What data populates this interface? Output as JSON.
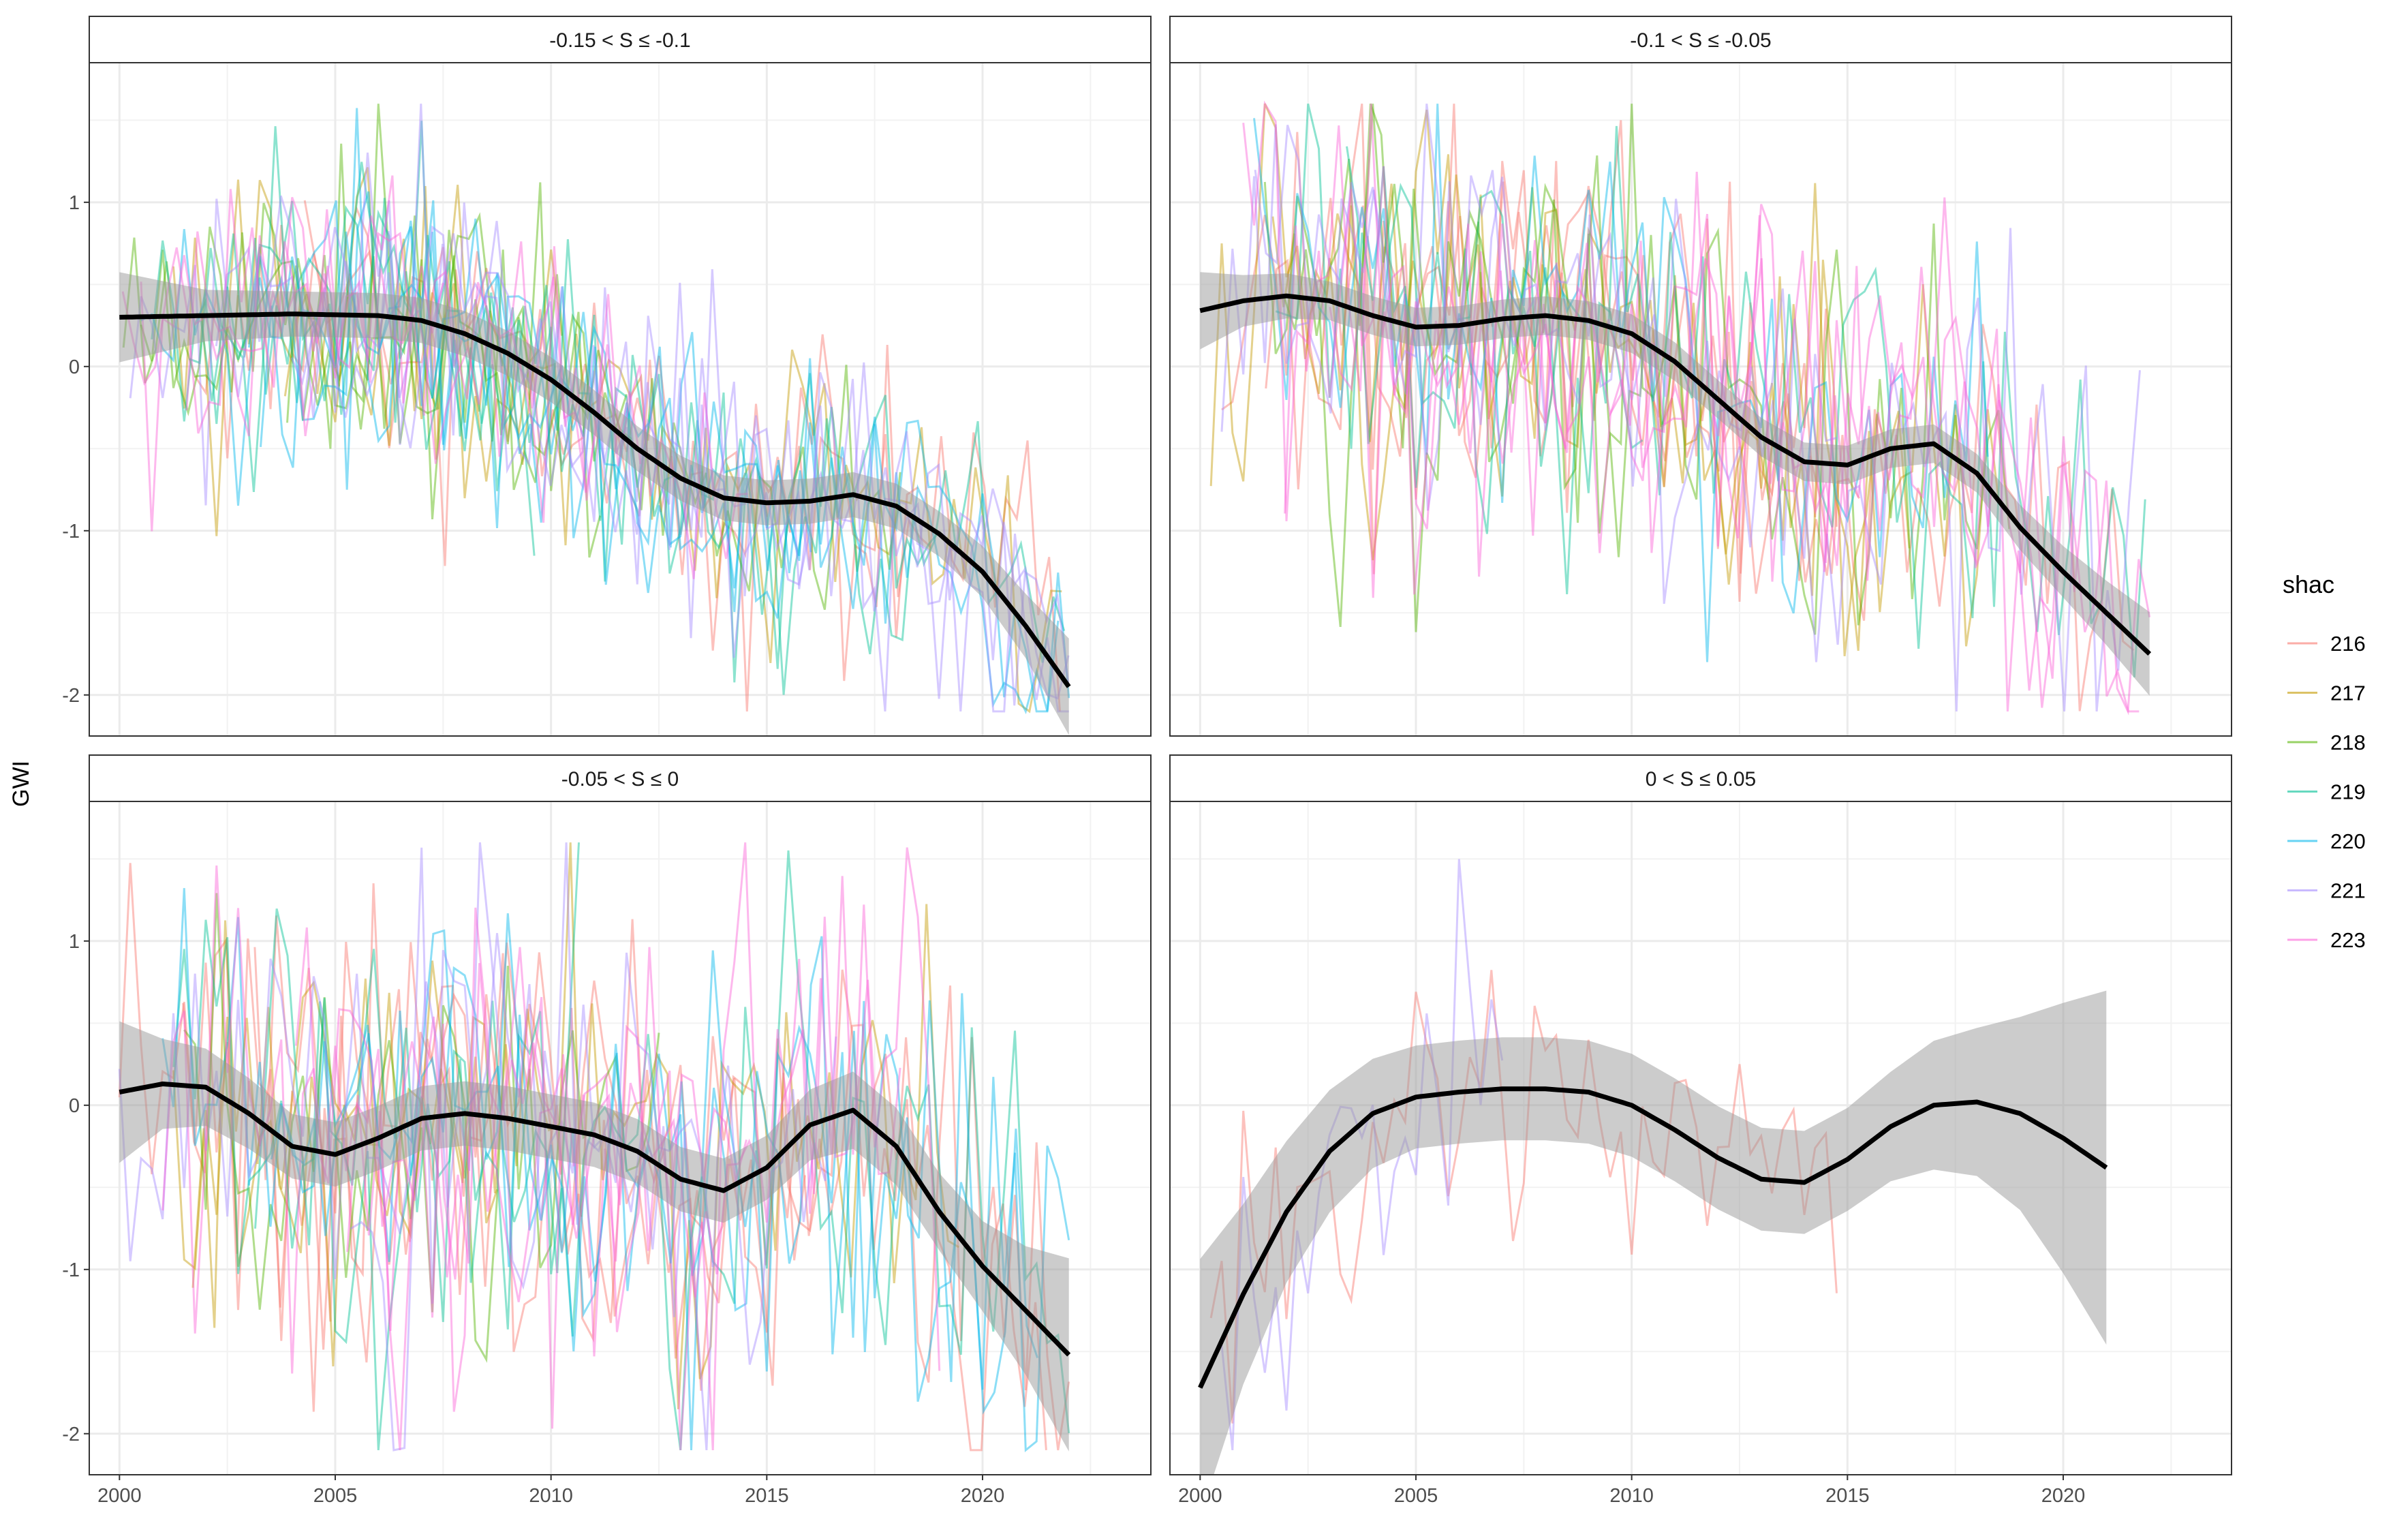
{
  "figure": {
    "ylabel": "GWI"
  },
  "legend": {
    "title": "shac",
    "placement": "right",
    "items": [
      {
        "label": "216",
        "color": "#F8766D"
      },
      {
        "label": "217",
        "color": "#C49A00"
      },
      {
        "label": "218",
        "color": "#53B400"
      },
      {
        "label": "219",
        "color": "#00C094"
      },
      {
        "label": "220",
        "color": "#00B6EB"
      },
      {
        "label": "221",
        "color": "#A58AFF"
      },
      {
        "label": "223",
        "color": "#FB61D7"
      }
    ]
  },
  "chart_data": {
    "type": "line",
    "facet_by": "S",
    "x_ticks": [
      "2000",
      "2005",
      "2010",
      "2015",
      "2020"
    ],
    "y_ticks": [
      "-2",
      "-1",
      "0",
      "1"
    ],
    "xlim": [
      1999.3,
      2023.9
    ],
    "ylim": [
      -2.25,
      1.85
    ],
    "grid": true,
    "series_style": "thin semi-transparent lines per shac, one value per quarter",
    "smooth": {
      "color": "#000000",
      "band_color": "#999999",
      "band_opacity": 0.5
    },
    "panels": [
      {
        "strip": "-0.15 < S ≤ -0.1",
        "shacs": [
          "216",
          "217",
          "218",
          "219",
          "220",
          "221",
          "223"
        ],
        "noise": 0.45,
        "smooth_x": [
          2000,
          2002,
          2004,
          2006,
          2007,
          2008,
          2009,
          2010,
          2011,
          2012,
          2013,
          2014,
          2015,
          2016,
          2017,
          2018,
          2019,
          2020,
          2021,
          2022
        ],
        "smooth_y": [
          0.3,
          0.31,
          0.32,
          0.31,
          0.28,
          0.2,
          0.08,
          -0.08,
          -0.28,
          -0.5,
          -0.68,
          -0.8,
          -0.83,
          -0.82,
          -0.78,
          -0.85,
          -1.02,
          -1.25,
          -1.58,
          -1.95
        ],
        "band_se": [
          0.14,
          0.08,
          0.07,
          0.07,
          0.07,
          0.07,
          0.07,
          0.07,
          0.07,
          0.07,
          0.07,
          0.07,
          0.07,
          0.07,
          0.07,
          0.07,
          0.07,
          0.08,
          0.1,
          0.15
        ]
      },
      {
        "strip": "-0.1 < S ≤ -0.05",
        "shacs": [
          "216",
          "217",
          "218",
          "219",
          "220",
          "221",
          "223"
        ],
        "noise": 0.6,
        "smooth_x": [
          2000,
          2001,
          2002,
          2003,
          2004,
          2005,
          2006,
          2007,
          2008,
          2009,
          2010,
          2011,
          2012,
          2013,
          2014,
          2015,
          2016,
          2017,
          2018,
          2019,
          2020,
          2021,
          2022
        ],
        "smooth_y": [
          0.34,
          0.4,
          0.43,
          0.4,
          0.31,
          0.24,
          0.25,
          0.29,
          0.31,
          0.28,
          0.2,
          0.03,
          -0.2,
          -0.43,
          -0.58,
          -0.6,
          -0.5,
          -0.47,
          -0.65,
          -0.98,
          -1.25,
          -1.5,
          -1.75
        ],
        "band_se": [
          0.12,
          0.08,
          0.07,
          0.06,
          0.06,
          0.06,
          0.06,
          0.06,
          0.06,
          0.06,
          0.06,
          0.06,
          0.06,
          0.06,
          0.06,
          0.06,
          0.06,
          0.06,
          0.06,
          0.07,
          0.08,
          0.1,
          0.13
        ]
      },
      {
        "strip": "-0.05 < S ≤ 0",
        "shacs": [
          "216",
          "217",
          "218",
          "219",
          "220",
          "221",
          "223"
        ],
        "noise": 0.7,
        "smooth_x": [
          2000,
          2001,
          2002,
          2003,
          2004,
          2005,
          2006,
          2007,
          2008,
          2009,
          2010,
          2011,
          2012,
          2013,
          2014,
          2015,
          2016,
          2017,
          2018,
          2019,
          2020,
          2021,
          2022
        ],
        "smooth_y": [
          0.08,
          0.13,
          0.11,
          -0.05,
          -0.25,
          -0.3,
          -0.2,
          -0.08,
          -0.05,
          -0.08,
          -0.13,
          -0.18,
          -0.28,
          -0.45,
          -0.52,
          -0.38,
          -0.12,
          -0.03,
          -0.25,
          -0.65,
          -0.98,
          -1.25,
          -1.52
        ],
        "band_se": [
          0.22,
          0.14,
          0.12,
          0.11,
          0.1,
          0.1,
          0.1,
          0.1,
          0.1,
          0.1,
          0.1,
          0.1,
          0.1,
          0.1,
          0.1,
          0.1,
          0.11,
          0.12,
          0.12,
          0.12,
          0.14,
          0.2,
          0.3
        ]
      },
      {
        "strip": "0 < S ≤ 0.05",
        "shacs": [
          "216",
          "221"
        ],
        "noise": 0.45,
        "smooth_x": [
          2000,
          2001,
          2002,
          2003,
          2004,
          2005,
          2006,
          2007,
          2008,
          2009,
          2010,
          2011,
          2012,
          2013,
          2014,
          2015,
          2016,
          2017,
          2018,
          2019,
          2020,
          2021
        ],
        "smooth_y": [
          -1.72,
          -1.15,
          -0.65,
          -0.28,
          -0.05,
          0.05,
          0.08,
          0.1,
          0.1,
          0.08,
          0.0,
          -0.15,
          -0.32,
          -0.45,
          -0.47,
          -0.33,
          -0.13,
          0.0,
          0.02,
          -0.05,
          -0.2,
          -0.38
        ],
        "band_se": [
          0.4,
          0.28,
          0.22,
          0.19,
          0.17,
          0.16,
          0.16,
          0.16,
          0.16,
          0.16,
          0.16,
          0.16,
          0.16,
          0.16,
          0.16,
          0.16,
          0.17,
          0.2,
          0.23,
          0.3,
          0.42,
          0.55
        ]
      }
    ]
  }
}
